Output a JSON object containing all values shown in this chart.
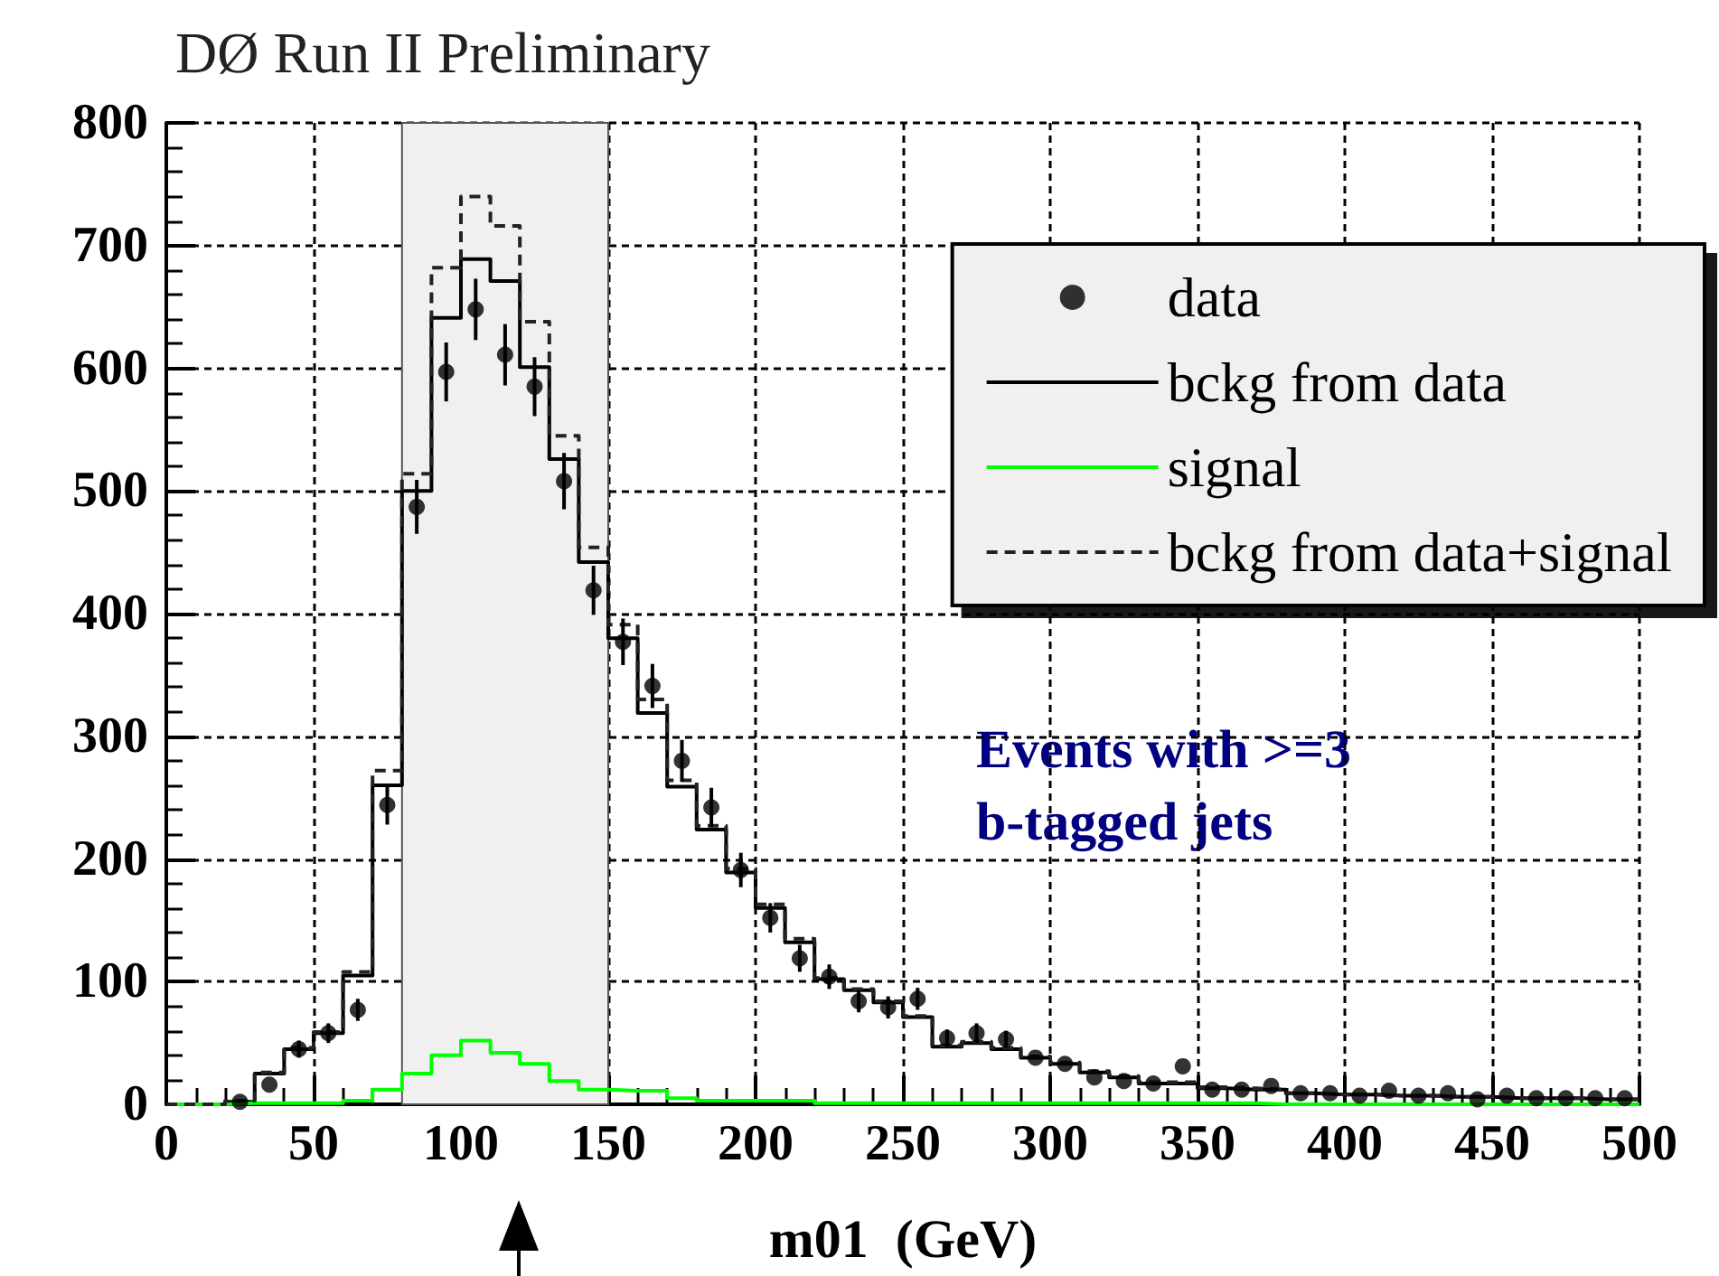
{
  "chart_data": {
    "type": "histogram",
    "title": "DØ Run II Preliminary",
    "xlabel": "m01  (GeV)",
    "annotations": [
      "Events with >=3 b-tagged jets"
    ],
    "bins": [
      0,
      10,
      20,
      30,
      40,
      50,
      60,
      70,
      80,
      90,
      100,
      110,
      120,
      130,
      140,
      150,
      160,
      170,
      180,
      190,
      200,
      210,
      220,
      230,
      240,
      250,
      260,
      270,
      280,
      290,
      300,
      310,
      320,
      330,
      340,
      350,
      360,
      370,
      380,
      390,
      400,
      410,
      420,
      430,
      440,
      450,
      460,
      470,
      480,
      490,
      500
    ],
    "series": [
      {
        "name": "data",
        "type": "scatter",
        "color": "#000000",
        "marker": "circle",
        "x": [
          25,
          35,
          45,
          55,
          65,
          75,
          85,
          95,
          105,
          115,
          125,
          135,
          145,
          155,
          165,
          175,
          185,
          195,
          205,
          215,
          225,
          235,
          245,
          255,
          265,
          275,
          285,
          295,
          305,
          315,
          325,
          335,
          345,
          355,
          365,
          375,
          385,
          395,
          405,
          415,
          425,
          435,
          445,
          455,
          465,
          475,
          485,
          495
        ],
        "values": [
          2,
          16,
          45,
          58,
          77,
          244,
          487,
          597,
          648,
          611,
          585,
          508,
          419,
          377,
          341,
          280,
          242,
          191,
          152,
          119,
          104,
          84,
          79,
          86,
          54,
          58,
          53,
          38,
          33,
          22,
          19,
          17,
          31,
          12,
          12,
          15,
          9,
          9,
          7,
          11,
          7,
          9,
          4,
          7,
          5,
          5,
          5,
          5
        ],
        "errors": [
          null,
          null,
          7,
          8,
          9,
          16,
          22,
          24,
          25,
          25,
          24,
          23,
          20,
          19,
          18,
          17,
          16,
          14,
          12,
          11,
          10,
          9,
          9,
          9,
          7,
          8,
          7,
          null,
          null,
          null,
          null,
          null,
          null,
          null,
          null,
          null,
          null,
          null,
          null,
          null,
          null,
          null,
          null,
          null,
          null,
          null,
          null,
          null
        ]
      },
      {
        "name": "bckg from data",
        "color": "#000000",
        "line_style": "solid",
        "values": [
          0,
          0,
          2,
          25,
          45,
          58,
          105,
          260,
          500,
          641,
          689,
          671,
          601,
          526,
          442,
          380,
          319,
          259,
          224,
          189,
          160,
          132,
          102,
          93,
          83,
          71,
          47,
          50,
          45,
          38,
          33,
          26,
          22,
          17,
          17,
          13,
          12,
          12,
          9,
          8,
          8,
          7,
          7,
          6,
          6,
          5,
          5,
          5,
          4,
          4
        ]
      },
      {
        "name": "signal",
        "color": "#00ff00",
        "line_style": "solid",
        "values": [
          0,
          0,
          1,
          1,
          1,
          1,
          3,
          12,
          25,
          40,
          52,
          42,
          33,
          19,
          12,
          11,
          11,
          5,
          3,
          3,
          3,
          3,
          1,
          1,
          1,
          1,
          1,
          1,
          1,
          1,
          1,
          1,
          1,
          1,
          1,
          1,
          1,
          0,
          0,
          0,
          0,
          0,
          0,
          0,
          0,
          0,
          0,
          0,
          0,
          0
        ]
      },
      {
        "name": "bckg from data+signal",
        "color": "#222222",
        "line_style": "dashed",
        "values": [
          0,
          0,
          3,
          26,
          46,
          59,
          108,
          272,
          514,
          682,
          740,
          716,
          638,
          545,
          454,
          391,
          330,
          264,
          227,
          192,
          163,
          135,
          103,
          94,
          84,
          72,
          48,
          51,
          46,
          39,
          34,
          27,
          23,
          18,
          18,
          14,
          13,
          12,
          9,
          8,
          8,
          7,
          7,
          6,
          6,
          5,
          5,
          5,
          4,
          4
        ]
      }
    ],
    "bands": [
      {
        "axis": "x",
        "from": 80,
        "to": 150,
        "color": "#f0f0f0"
      }
    ],
    "xlim": [
      0,
      500
    ],
    "xticks": [
      0,
      50,
      100,
      150,
      200,
      250,
      300,
      350,
      400,
      450,
      500
    ],
    "ylim": [
      0,
      800
    ],
    "yticks": [
      0,
      100,
      200,
      300,
      400,
      500,
      600,
      700,
      800
    ],
    "grid": true,
    "legend": "top right"
  }
}
